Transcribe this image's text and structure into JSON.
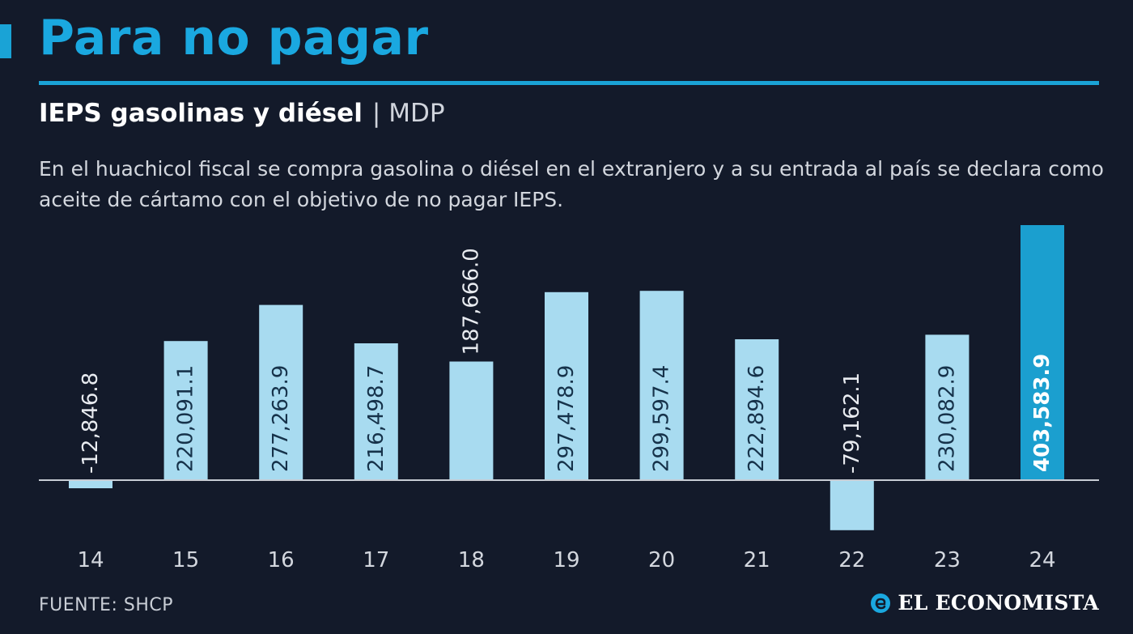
{
  "header": {
    "title": "Para no pagar",
    "subtitle": "IEPS gasolinas y diésel",
    "separator": "|",
    "unit": "MDP",
    "description": "En el huachicol fiscal se compra gasolina o diésel en el extranjero y a su entrada al país se declara como aceite de cártamo con el objetivo de no pagar IEPS."
  },
  "footer": {
    "source": "FUENTE: SHCP",
    "brand": "EL ECONOMISTA",
    "brand_icon": "el-economista-logo-icon"
  },
  "colors": {
    "background": "#131a2a",
    "accent": "#1aa8e0",
    "bar": "#a8dbf0",
    "highlight_bar": "#1b9fcf",
    "baseline": "#c7ccd4"
  },
  "chart_data": {
    "type": "bar",
    "title": "IEPS gasolinas y diésel",
    "ylabel": "MDP",
    "categories": [
      "14",
      "15",
      "16",
      "17",
      "18",
      "19",
      "20",
      "21",
      "22",
      "23",
      "24"
    ],
    "values": [
      -12846.8,
      220091.1,
      277263.9,
      216498.7,
      187666.0,
      297478.9,
      299597.4,
      222894.6,
      -79162.1,
      230082.9,
      403583.9
    ],
    "labels": [
      "-12,846.8",
      "220,091.1",
      "277,263.9",
      "216,498.7",
      "187,666.0",
      "297,478.9",
      "299,597.4",
      "222,894.6",
      "-79,162.1",
      "230,082.9",
      "403,583.9"
    ],
    "highlight_index": 10,
    "grid": false,
    "legend": "none"
  }
}
